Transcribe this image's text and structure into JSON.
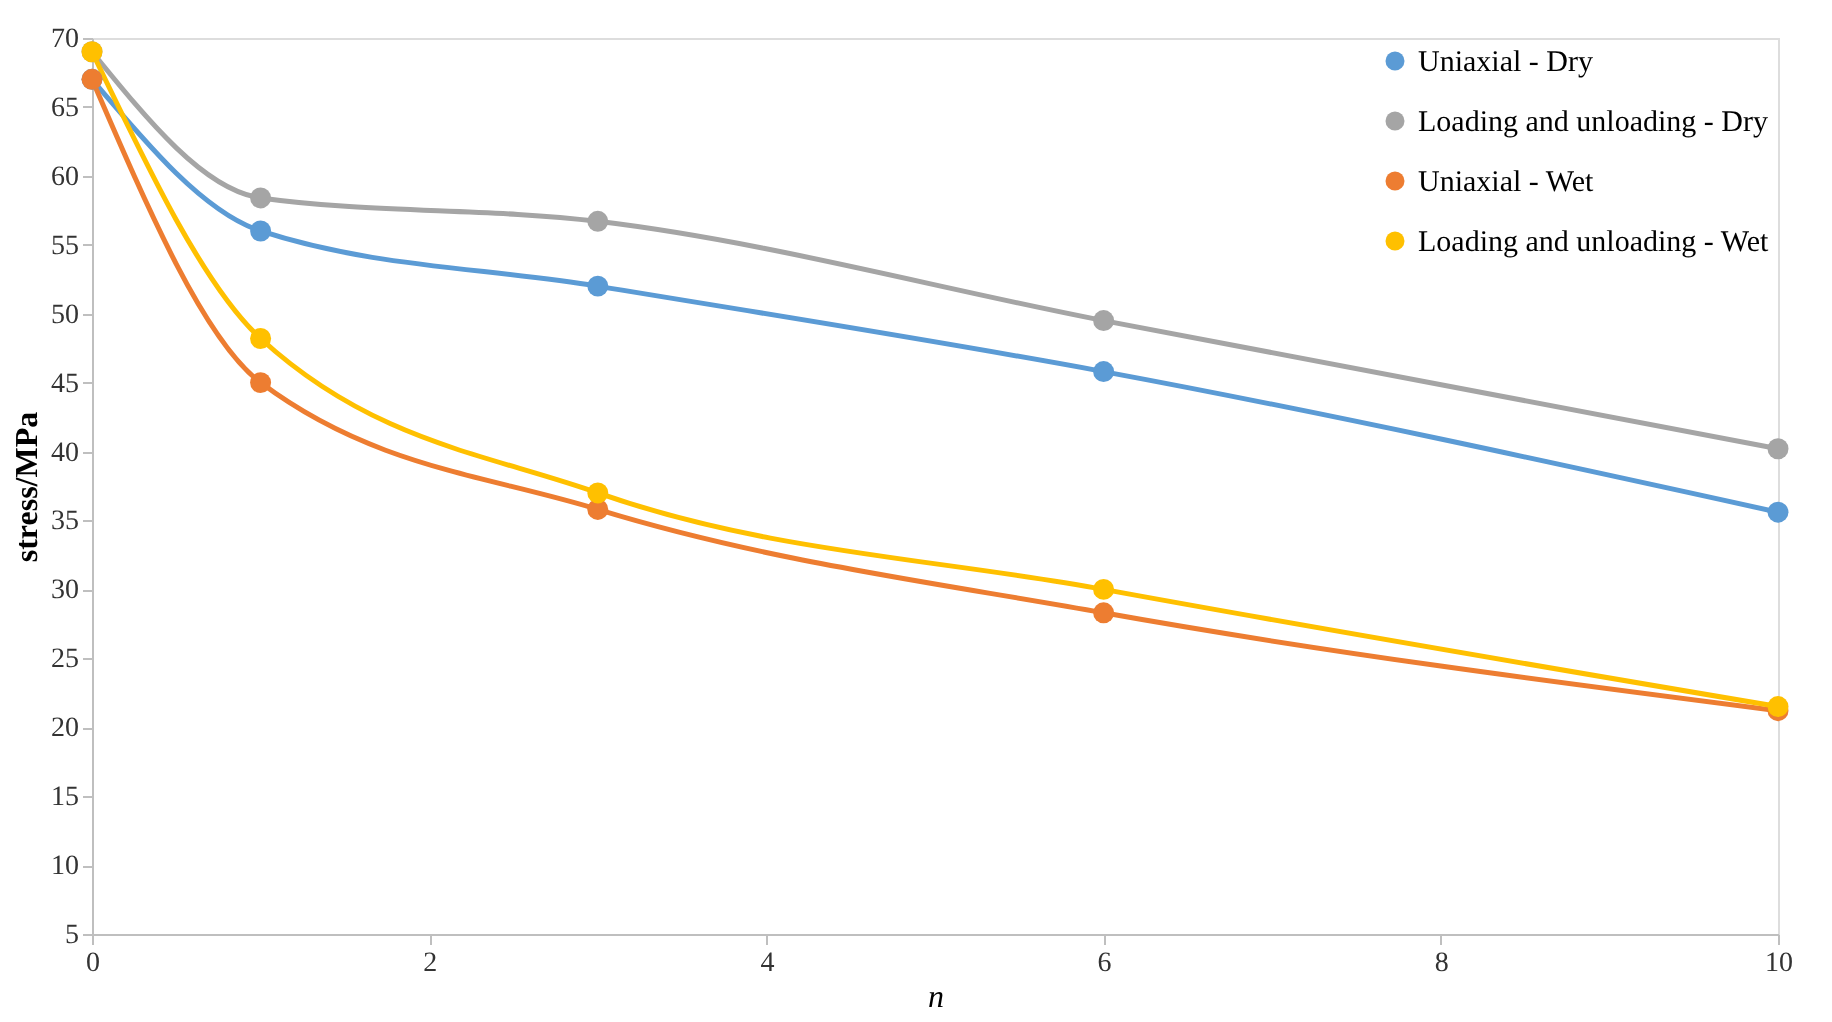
{
  "chart_data": {
    "type": "line",
    "xlabel": "n",
    "ylabel": "stress/MPa",
    "x": [
      0,
      1,
      3,
      6,
      10
    ],
    "series": [
      {
        "name": "Uniaxial - Dry",
        "color": "#5b9bd5",
        "values": [
          67,
          56,
          52,
          45.8,
          35.6
        ]
      },
      {
        "name": "Loading and unloading - Dry",
        "color": "#a5a5a5",
        "values": [
          69,
          58.4,
          56.7,
          49.5,
          40.2
        ]
      },
      {
        "name": "Uniaxial - Wet",
        "color": "#ed7d31",
        "values": [
          67,
          45,
          35.8,
          28.3,
          21.2
        ]
      },
      {
        "name": "Loading and unloading - Wet",
        "color": "#ffc000",
        "values": [
          69,
          48.2,
          37,
          30,
          21.5
        ]
      }
    ],
    "xlim": [
      0,
      10
    ],
    "xticks": [
      0,
      2,
      4,
      6,
      8,
      10
    ],
    "ylim": [
      5,
      70
    ],
    "yticks": [
      5,
      10,
      15,
      20,
      25,
      30,
      35,
      40,
      45,
      50,
      55,
      60,
      65,
      70
    ],
    "grid": false,
    "legend": "top right",
    "marker": "circle",
    "line_style": "solid"
  }
}
